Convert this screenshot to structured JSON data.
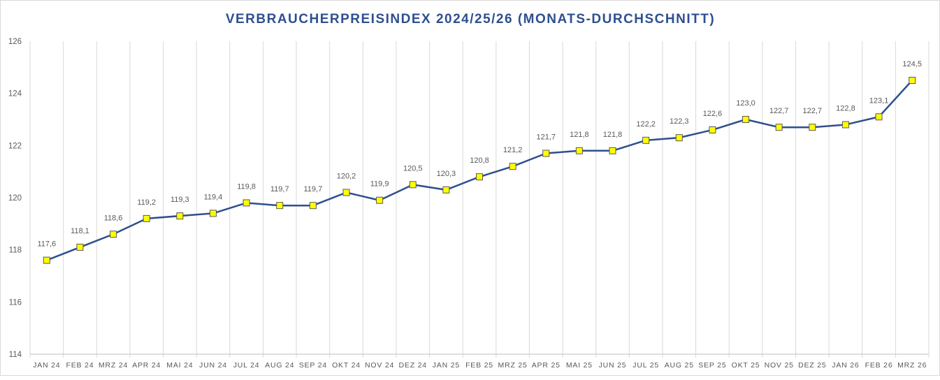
{
  "chart_data": {
    "type": "line",
    "title": "VERBRAUCHERPREISINDEX 2024/25/26 (MONATS-DURCHSCHNITT)",
    "xlabel": "",
    "ylabel": "",
    "ylim": [
      114,
      126
    ],
    "yticks": [
      114,
      116,
      118,
      120,
      122,
      124,
      126
    ],
    "ytick_labels": [
      "114",
      "116",
      "118",
      "120",
      "122",
      "124",
      "126"
    ],
    "grid": "vertical",
    "categories": [
      "JAN 24",
      "FEB 24",
      "MRZ 24",
      "APR 24",
      "MAI 24",
      "JUN 24",
      "JUL 24",
      "AUG 24",
      "SEP 24",
      "OKT 24",
      "NOV 24",
      "DEZ 24",
      "JAN 25",
      "FEB 25",
      "MRZ 25",
      "APR 25",
      "MAI 25",
      "JUN 25",
      "JUL 25",
      "AUG 25",
      "SEP 25",
      "OKT 25",
      "NOV 25",
      "DEZ 25",
      "JAN 26",
      "FEB 26",
      "MRZ 26"
    ],
    "series": [
      {
        "name": "Verbraucherpreisindex",
        "values": [
          117.6,
          118.1,
          118.6,
          119.2,
          119.3,
          119.4,
          119.8,
          119.7,
          119.7,
          120.2,
          119.9,
          120.5,
          120.3,
          120.8,
          121.2,
          121.7,
          121.8,
          121.8,
          122.2,
          122.3,
          122.6,
          123.0,
          122.7,
          122.7,
          122.8,
          123.1,
          124.5
        ],
        "labels": [
          "117,6",
          "118,1",
          "118,6",
          "119,2",
          "119,3",
          "119,4",
          "119,8",
          "119,7",
          "119,7",
          "120,2",
          "119,9",
          "120,5",
          "120,3",
          "120,8",
          "121,2",
          "121,7",
          "121,8",
          "121,8",
          "122,2",
          "122,3",
          "122,6",
          "123,0",
          "122,7",
          "122,7",
          "122,8",
          "123,1",
          "124,5"
        ]
      }
    ],
    "colors": {
      "title": "#2f4f8f",
      "line": "#2f4f8f",
      "marker_fill": "#ffff00",
      "marker_stroke": "#595959"
    }
  }
}
